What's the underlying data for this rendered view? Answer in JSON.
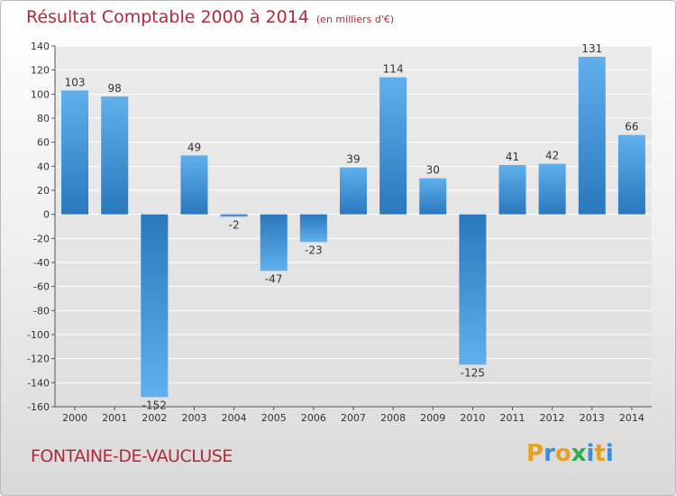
{
  "header": {
    "title": "Résultat Comptable 2000 à 2014",
    "unit": "(en milliers d'€)"
  },
  "footer": {
    "commune": "FONTAINE-DE-VAUCLUSE",
    "logo_letters": [
      "P",
      "r",
      "o",
      "x",
      "i",
      "t",
      "i"
    ],
    "logo_colors": [
      "#e8a020",
      "#3a8ed6",
      "#e8a020",
      "#2bb04a",
      "#3a8ed6",
      "#e8a020",
      "#3a8ed6"
    ]
  },
  "chart_data": {
    "type": "bar",
    "categories": [
      "2000",
      "2001",
      "2002",
      "2003",
      "2004",
      "2005",
      "2006",
      "2007",
      "2008",
      "2009",
      "2010",
      "2011",
      "2012",
      "2013",
      "2014"
    ],
    "values": [
      103,
      98,
      -152,
      49,
      -2,
      -47,
      -23,
      39,
      114,
      30,
      -125,
      41,
      42,
      131,
      66
    ],
    "ylim": [
      -160,
      140
    ],
    "yticks": [
      -160,
      -140,
      -120,
      -100,
      -80,
      -60,
      -40,
      -20,
      0,
      20,
      40,
      60,
      80,
      100,
      120,
      140
    ],
    "grid": true,
    "bar_color_light": "#5aacea",
    "bar_color_dark": "#2a78bd"
  }
}
